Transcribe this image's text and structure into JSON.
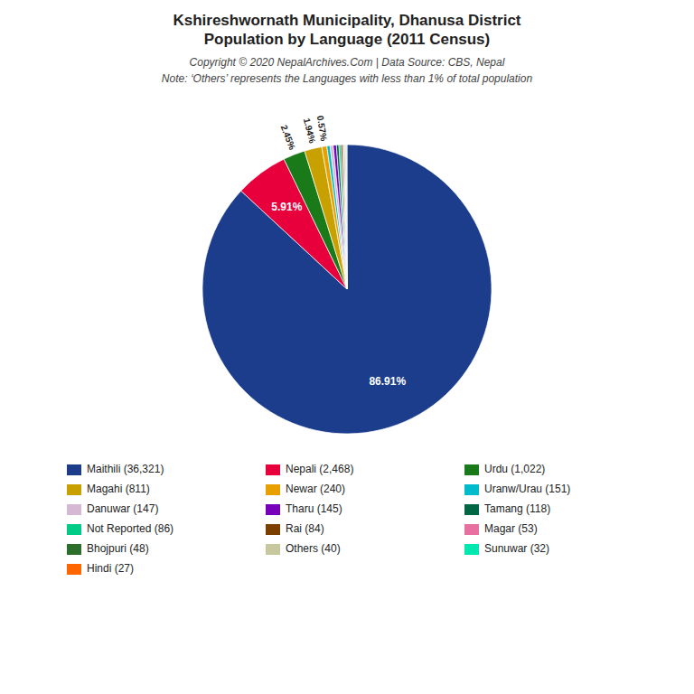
{
  "chart_data": {
    "type": "pie",
    "title": "Kshireshwornath Municipality, Dhanusa District\nPopulation by Language (2011 Census)",
    "subtitle": "Copyright © 2020 NepalArchives.Com | Data Source: CBS, Nepal",
    "annotations": [
      "Note: ‘Others’ represents the Languages with less than 1% of total population"
    ],
    "categories": [
      "Maithili (36,321)",
      "Nepali (2,468)",
      "Urdu (1,022)",
      "Magahi (811)",
      "Newar (240)",
      "Uranw/Urau (151)",
      "Danuwar (147)",
      "Tharu (145)",
      "Tamang (118)",
      "Not Reported (86)",
      "Rai (84)",
      "Magar (53)",
      "Bhojpuri (48)",
      "Others (40)",
      "Sunuwar (32)",
      "Hindi (27)"
    ],
    "values": [
      86.91,
      5.91,
      2.45,
      1.94,
      0.57,
      0.36,
      0.35,
      0.35,
      0.28,
      0.21,
      0.2,
      0.13,
      0.11,
      0.1,
      0.08,
      0.06
    ],
    "value_labels": [
      "86.91%",
      "5.91%",
      "2.45%",
      "1.94%",
      "0.57%",
      null,
      null,
      null,
      null,
      null,
      null,
      null,
      null,
      null,
      null,
      null
    ],
    "colors": [
      "#1c3d8c",
      "#e8003d",
      "#1a7a1a",
      "#c8a000",
      "#e8a000",
      "#00bbcc",
      "#d4b8d4",
      "#7700bb",
      "#006644",
      "#00cc88",
      "#7b3f00",
      "#e870a0",
      "#2d6e2d",
      "#c8c8a0",
      "#00e8b0",
      "#ff6600"
    ],
    "data_labels": true,
    "legend": "bottom"
  }
}
